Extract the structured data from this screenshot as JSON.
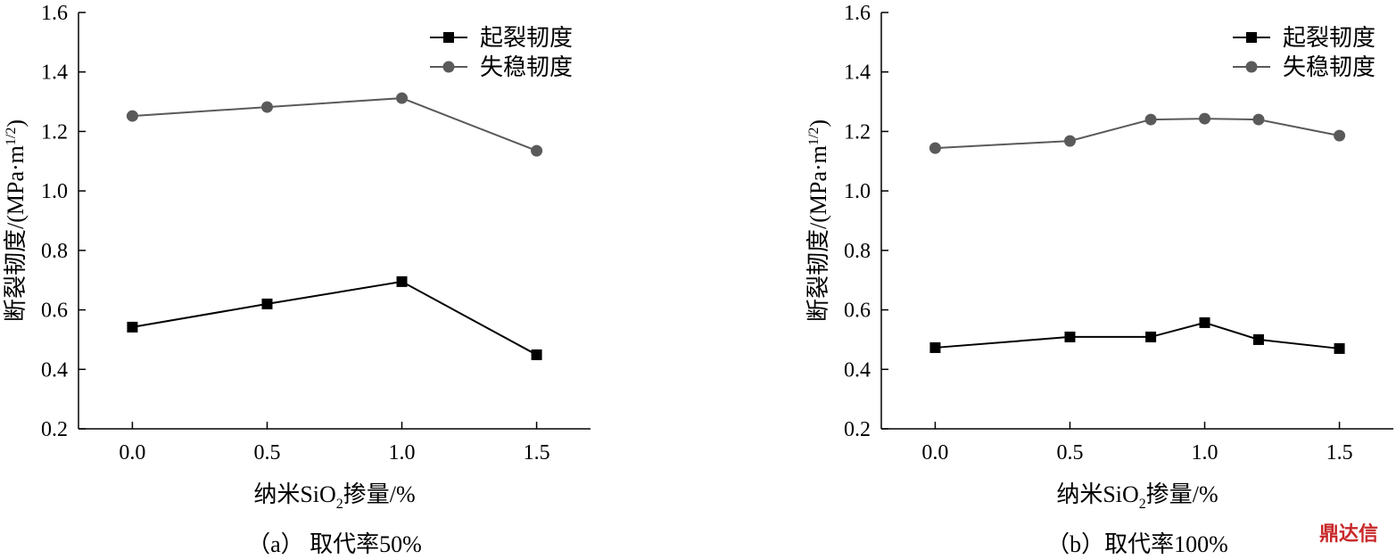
{
  "chart_data": [
    {
      "type": "line",
      "ylabel": [
        "断裂韧度/(MPa·m",
        "1/2",
        ")"
      ],
      "xlabel": [
        "纳米SiO",
        "2",
        "掺量/%"
      ],
      "caption": "（a） 取代率50%",
      "x": [
        0,
        0.5,
        1,
        1.5
      ],
      "series": [
        {
          "name": "起裂韧度",
          "color": "#000000",
          "marker": "square",
          "values": [
            0.542,
            0.62,
            0.695,
            0.449
          ]
        },
        {
          "name": "失稳韧度",
          "color": "#5a5a5a",
          "marker": "circle",
          "values": [
            1.252,
            1.282,
            1.312,
            1.135
          ]
        }
      ],
      "xlim": [
        -0.2,
        1.7
      ],
      "xticks": [
        {
          "value": 0,
          "label": "0.0"
        },
        0.5,
        {
          "value": 1,
          "label": "1.0"
        },
        1.5
      ],
      "ylim": [
        0.2,
        1.6
      ],
      "yticks": [
        0.2,
        0.4,
        0.6,
        0.8,
        {
          "value": 1,
          "label": "1.0"
        },
        1.2,
        1.4,
        1.6
      ],
      "legend": "upper right"
    },
    {
      "type": "line",
      "ylabel": [
        "断裂韧度/(MPa·m",
        "1/2",
        ")"
      ],
      "xlabel": [
        "纳米SiO",
        "2",
        "掺量/%"
      ],
      "caption": "（b）取代率100%",
      "x": [
        0,
        0.5,
        0.8,
        1,
        1.2,
        1.5
      ],
      "series": [
        {
          "name": "起裂韧度",
          "color": "#000000",
          "marker": "square",
          "values": [
            0.473,
            0.509,
            0.509,
            0.557,
            0.5,
            0.47
          ]
        },
        {
          "name": "失稳韧度",
          "color": "#5a5a5a",
          "marker": "circle",
          "values": [
            1.144,
            1.168,
            1.24,
            1.243,
            1.24,
            1.186
          ]
        }
      ],
      "xlim": [
        -0.2,
        1.7
      ],
      "xticks": [
        {
          "value": 0,
          "label": "0.0"
        },
        0.5,
        {
          "value": 1,
          "label": "1.0"
        },
        1.5
      ],
      "ylim": [
        0.2,
        1.6
      ],
      "yticks": [
        0.2,
        0.4,
        0.6,
        0.8,
        {
          "value": 1,
          "label": "1.0"
        },
        1.2,
        1.4,
        1.6
      ],
      "legend": "upper right"
    }
  ],
  "watermark": "鼎达信"
}
